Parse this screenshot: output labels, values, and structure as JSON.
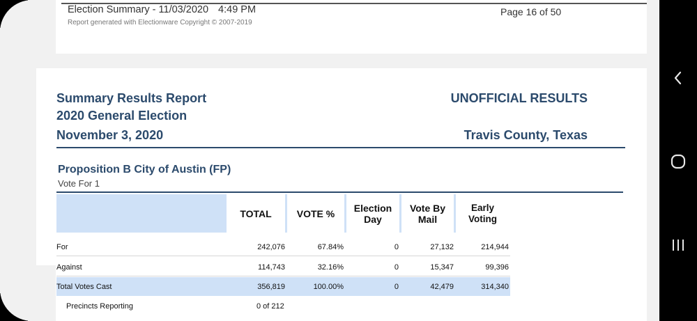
{
  "page_header": {
    "title": "Election Summary - 11/03/2020",
    "time": "4:49 PM",
    "generated": "Report generated with Electionware Copyright © 2007-2019",
    "page": "Page 16 of 50"
  },
  "report": {
    "title": "Summary Results Report",
    "election": "2020 General Election",
    "date": "November 3, 2020",
    "status": "UNOFFICIAL RESULTS",
    "county": "Travis County, Texas"
  },
  "contest": {
    "name": "Proposition B City of Austin (FP)",
    "vote_for": "Vote For 1"
  },
  "table": {
    "headers": [
      "TOTAL",
      "VOTE %",
      "Election\nDay",
      "Vote By\nMail",
      "Early Voting"
    ],
    "rows": [
      {
        "label": "For",
        "total": "242,076",
        "pct": "67.84%",
        "eday": "0",
        "mail": "27,132",
        "early": "214,944"
      },
      {
        "label": "Against",
        "total": "114,743",
        "pct": "32.16%",
        "eday": "0",
        "mail": "15,347",
        "early": "99,396"
      },
      {
        "label": "Total Votes Cast",
        "total": "356,819",
        "pct": "100.00%",
        "eday": "0",
        "mail": "42,479",
        "early": "314,340"
      }
    ],
    "precincts_label": "Precincts Reporting",
    "precincts_value": "0 of 212"
  },
  "nav_bar": {
    "icons": [
      "back-icon",
      "home-icon",
      "recents-icon"
    ]
  }
}
